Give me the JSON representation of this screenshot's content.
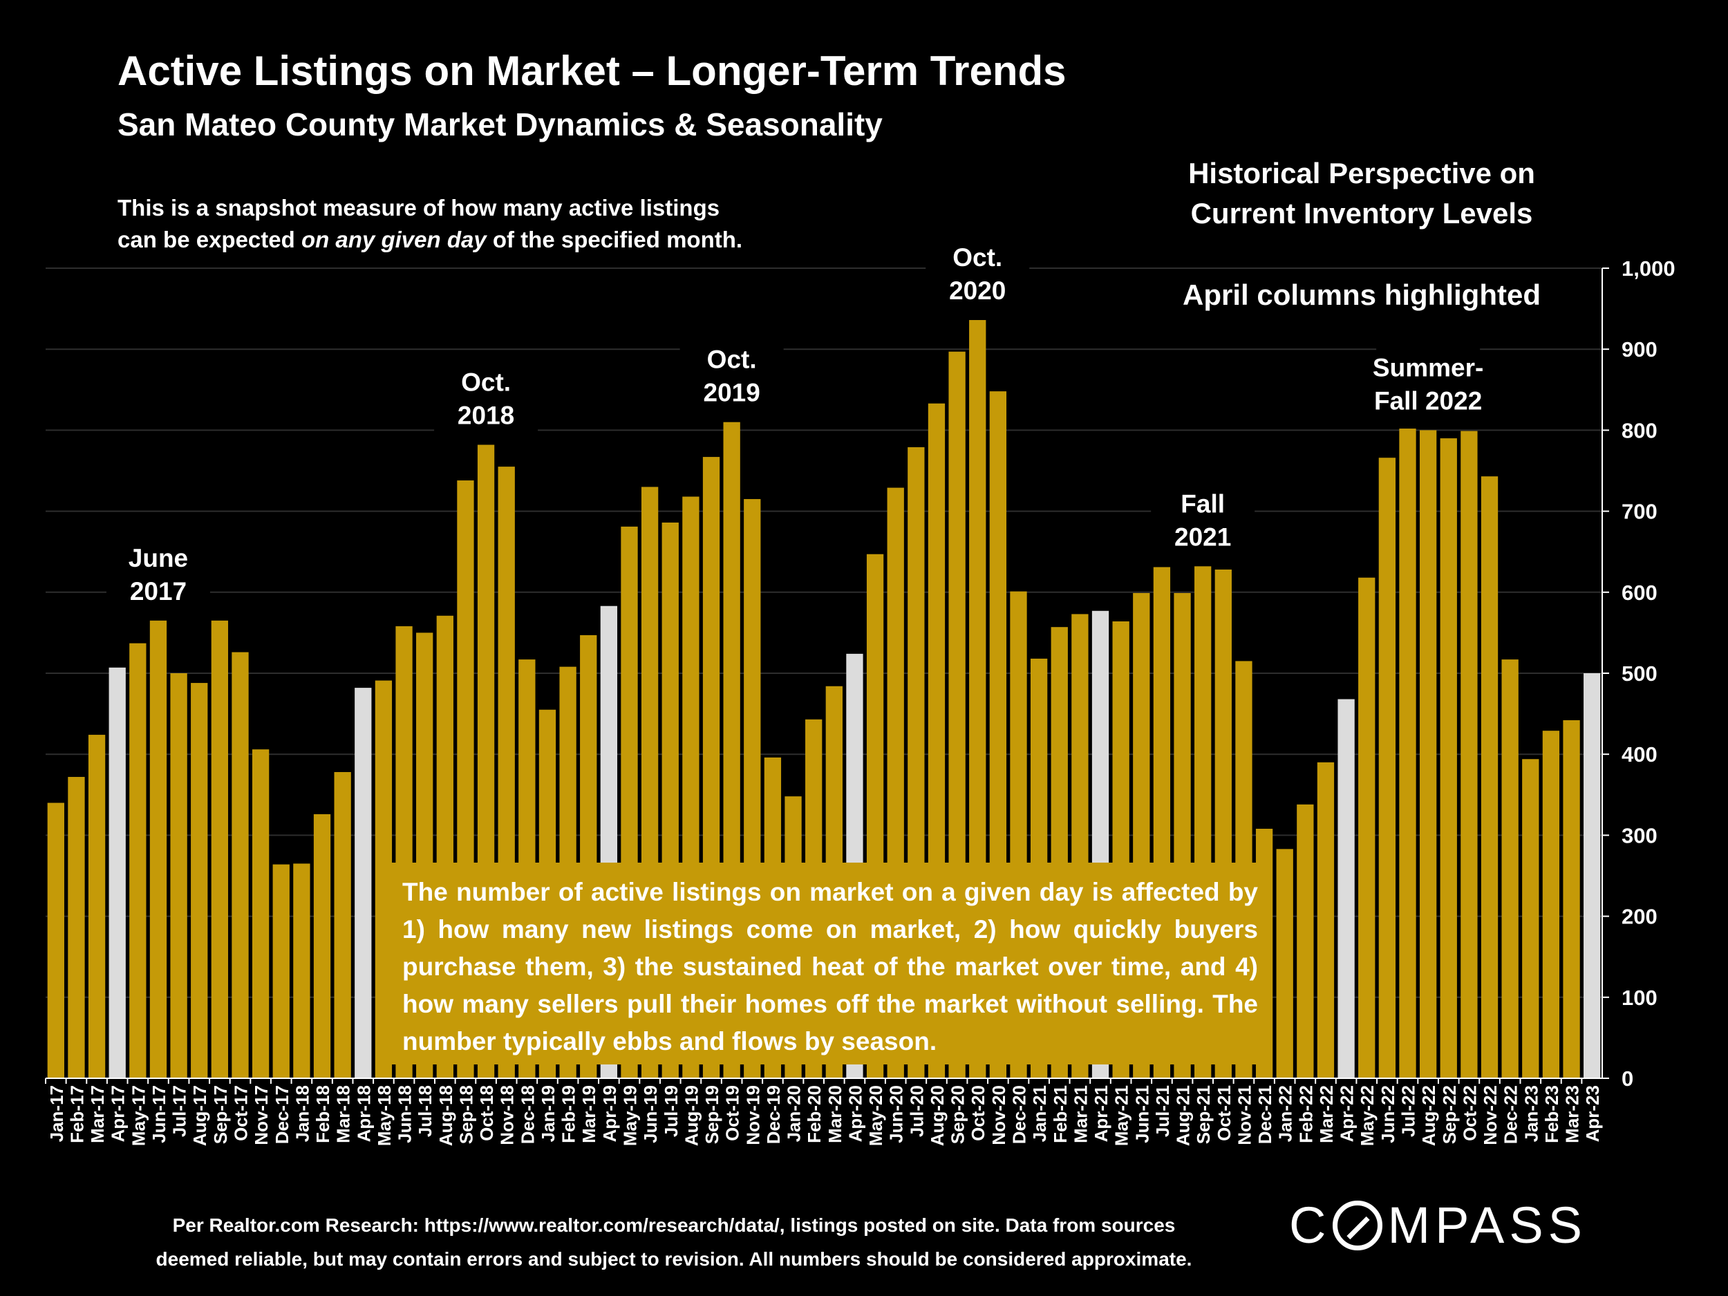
{
  "title": "Active Listings on Market – Longer-Term Trends",
  "subtitle": "San Mateo County Market Dynamics & Seasonality",
  "description": {
    "line1": "This is a snapshot measure of how many active listings",
    "line2_pre": "can be expected ",
    "line2_em": "on any given day",
    "line2_post": " of the specified month."
  },
  "side_note": {
    "line1": "Historical Perspective on",
    "line2": "Current Inventory Levels",
    "april": "April columns highlighted"
  },
  "callout": "The number of active listings on market on a given day is affected by 1) how many new listings come on market, 2) how quickly buyers purchase them, 3) the sustained heat of the market over time, and 4) how many sellers pull their homes off the market without selling. The number typically ebbs and flows by season.",
  "footer": {
    "line1": "Per Realtor.com Research:  https://www.realtor.com/research/data/, listings posted on site. Data from sources",
    "line2": "deemed reliable, but may contain errors and subject to revision. All numbers should be considered approximate."
  },
  "logo": {
    "c": "C",
    "rest": "MPASS"
  },
  "colors": {
    "background": "#000000",
    "bar": "#c59a08",
    "highlight": "#dcdcdc",
    "text": "#ffffff",
    "grid": "#2e2e2e"
  },
  "chart_data": {
    "type": "bar",
    "title": "Active Listings on Market – Longer-Term Trends",
    "ylim": [
      0,
      1000
    ],
    "yticks": [
      0,
      100,
      200,
      300,
      400,
      500,
      600,
      700,
      800,
      900,
      1000
    ],
    "ytick_labels": [
      "0",
      "100",
      "200",
      "300",
      "400",
      "500",
      "600",
      "700",
      "800",
      "900",
      "1,000"
    ],
    "y_axis_side": "right",
    "grid": true,
    "highlight_rule": "April columns highlighted",
    "categories": [
      "Jan-17",
      "Feb-17",
      "Mar-17",
      "Apr-17",
      "May-17",
      "Jun-17",
      "Jul-17",
      "Aug-17",
      "Sep-17",
      "Oct-17",
      "Nov-17",
      "Dec-17",
      "Jan-18",
      "Feb-18",
      "Mar-18",
      "Apr-18",
      "May-18",
      "Jun-18",
      "Jul-18",
      "Aug-18",
      "Sep-18",
      "Oct-18",
      "Nov-18",
      "Dec-18",
      "Jan-19",
      "Feb-19",
      "Mar-19",
      "Apr-19",
      "May-19",
      "Jun-19",
      "Jul-19",
      "Aug-19",
      "Sep-19",
      "Oct-19",
      "Nov-19",
      "Dec-19",
      "Jan-20",
      "Feb-20",
      "Mar-20",
      "Apr-20",
      "May-20",
      "Jun-20",
      "Jul-20",
      "Aug-20",
      "Sep-20",
      "Oct-20",
      "Nov-20",
      "Dec-20",
      "Jan-21",
      "Feb-21",
      "Mar-21",
      "Apr-21",
      "May-21",
      "Jun-21",
      "Jul-21",
      "Aug-21",
      "Sep-21",
      "Oct-21",
      "Nov-21",
      "Dec-21",
      "Jan-22",
      "Feb-22",
      "Mar-22",
      "Apr-22",
      "May-22",
      "Jun-22",
      "Jul-22",
      "Aug-22",
      "Sep-22",
      "Oct-22",
      "Nov-22",
      "Dec-22",
      "Jan-23",
      "Feb-23",
      "Mar-23",
      "Apr-23"
    ],
    "values": [
      340,
      372,
      424,
      507,
      537,
      565,
      500,
      488,
      565,
      526,
      406,
      264,
      265,
      326,
      378,
      482,
      491,
      558,
      550,
      571,
      738,
      782,
      755,
      517,
      455,
      508,
      547,
      583,
      681,
      730,
      686,
      718,
      767,
      810,
      715,
      396,
      348,
      443,
      484,
      524,
      647,
      729,
      779,
      833,
      897,
      936,
      848,
      601,
      518,
      557,
      573,
      577,
      564,
      599,
      631,
      599,
      632,
      628,
      515,
      308,
      283,
      338,
      390,
      468,
      618,
      766,
      802,
      800,
      790,
      799,
      743,
      517,
      394,
      429,
      442,
      500
    ],
    "highlighted": [
      "Apr-17",
      "Apr-18",
      "Apr-19",
      "Apr-20",
      "Apr-21",
      "Apr-22",
      "Apr-23"
    ],
    "annotations": [
      {
        "category": "Jun-17",
        "lines": [
          "June",
          "2017"
        ]
      },
      {
        "category": "Oct-18",
        "lines": [
          "Oct.",
          "2018"
        ]
      },
      {
        "category": "Oct-19",
        "lines": [
          "Oct.",
          "2019"
        ]
      },
      {
        "category": "Oct-20",
        "lines": [
          "Oct.",
          "2020"
        ]
      },
      {
        "category": "Sep-21",
        "lines": [
          "Fall",
          "2021"
        ]
      },
      {
        "category": "Aug-22",
        "lines": [
          "Summer-",
          "Fall 2022"
        ]
      }
    ]
  }
}
